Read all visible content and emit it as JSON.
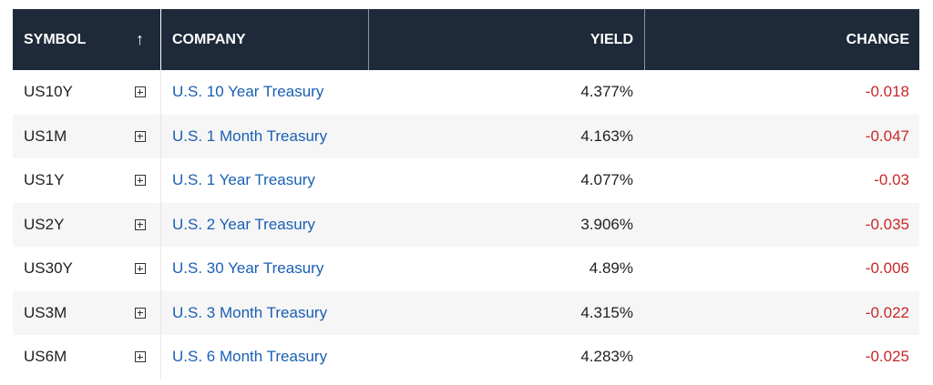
{
  "header": {
    "symbol": "SYMBOL",
    "sort_icon": "↑",
    "company": "COMPANY",
    "yield": "YIELD",
    "change": "CHANGE"
  },
  "rows": [
    {
      "symbol": "US10Y",
      "company": "U.S. 10 Year Treasury",
      "yield": "4.377%",
      "change": "-0.018"
    },
    {
      "symbol": "US1M",
      "company": "U.S. 1 Month Treasury",
      "yield": "4.163%",
      "change": "-0.047"
    },
    {
      "symbol": "US1Y",
      "company": "U.S. 1 Year Treasury",
      "yield": "4.077%",
      "change": "-0.03"
    },
    {
      "symbol": "US2Y",
      "company": "U.S. 2 Year Treasury",
      "yield": "3.906%",
      "change": "-0.035"
    },
    {
      "symbol": "US30Y",
      "company": "U.S. 30 Year Treasury",
      "yield": "4.89%",
      "change": "-0.006"
    },
    {
      "symbol": "US3M",
      "company": "U.S. 3 Month Treasury",
      "yield": "4.315%",
      "change": "-0.022"
    },
    {
      "symbol": "US6M",
      "company": "U.S. 6 Month Treasury",
      "yield": "4.283%",
      "change": "-0.025"
    }
  ],
  "icons": {
    "add": "plus-box-icon",
    "sort": "arrow-up-icon"
  },
  "colors": {
    "header_bg": "#1e2a3a",
    "link": "#1a5fb4",
    "negative": "#c62828",
    "alt_row": "#f6f6f6"
  }
}
